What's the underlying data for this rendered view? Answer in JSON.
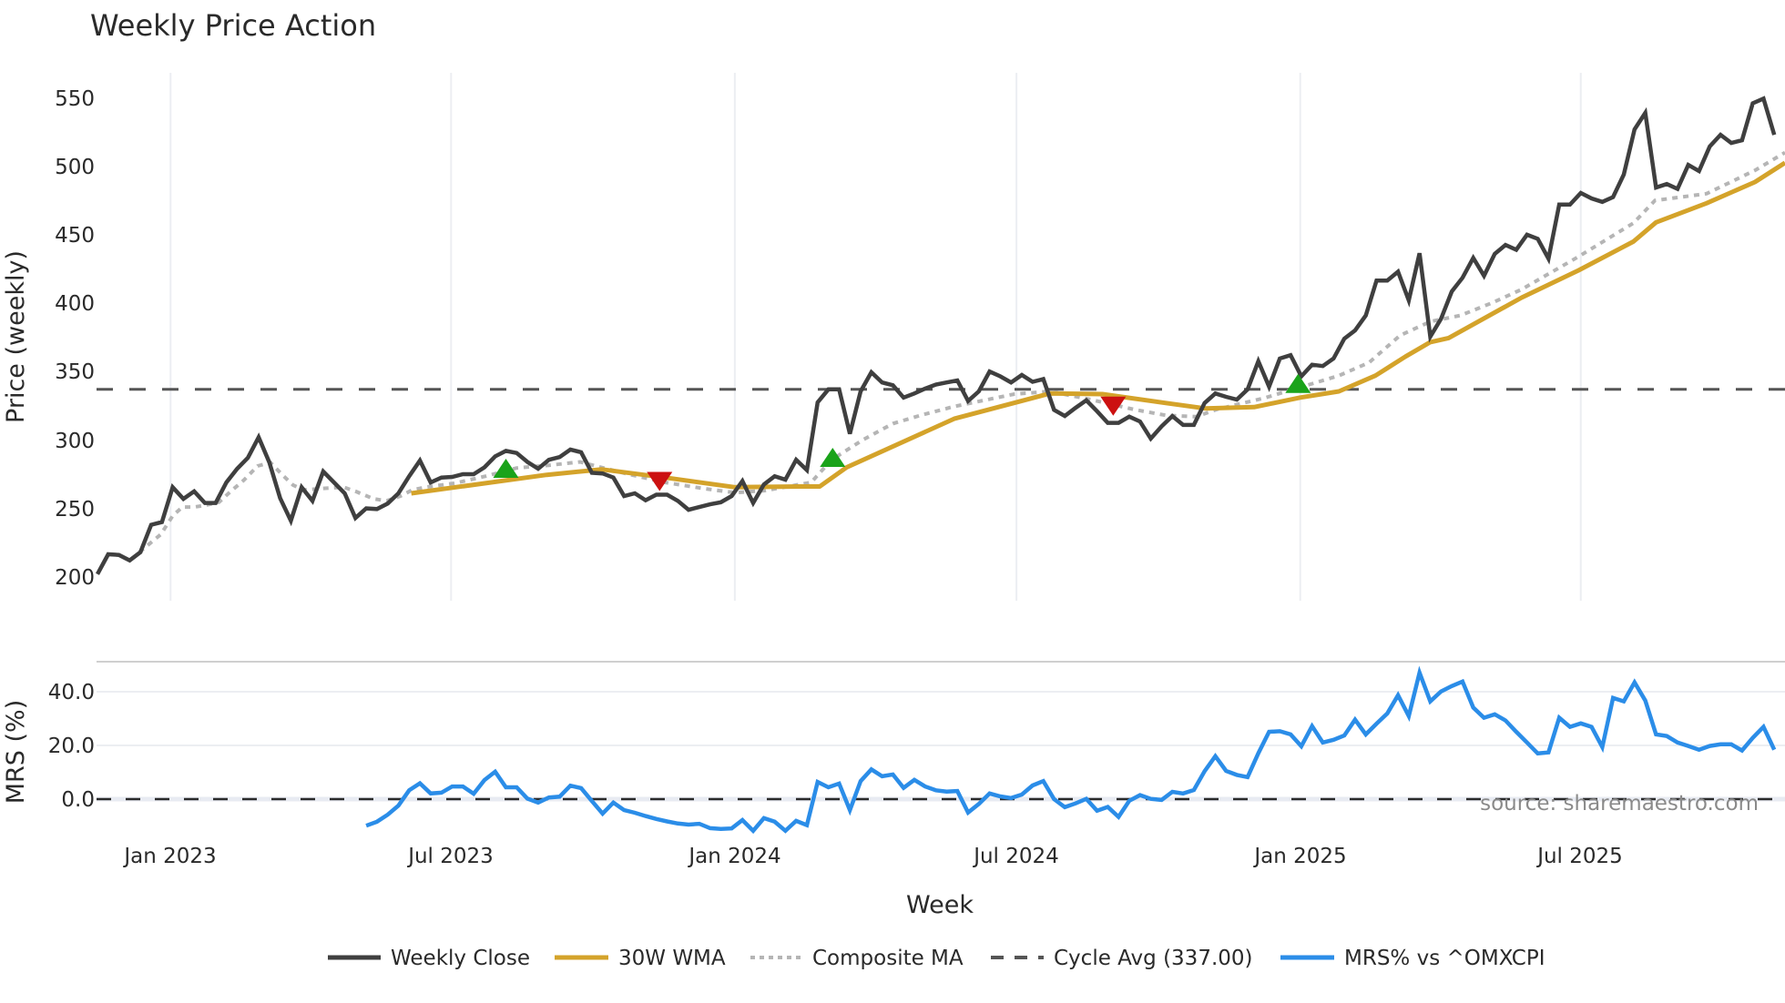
{
  "title": "Weekly Price Action",
  "source_label": "source: sharemaestro.com",
  "colors": {
    "close": "#3f3f3f",
    "wma": "#d4a32a",
    "composite": "#b5b5b5",
    "cycle": "#555555",
    "mrs": "#2b8de8",
    "buy": "#1aa31a",
    "sell": "#cc1111",
    "grid": "#eceef2"
  },
  "chart_data": [
    {
      "type": "line",
      "title": "Weekly Price Action",
      "xlabel": "Week",
      "ylabel": "Price (weekly)",
      "ylim": [
        195,
        560
      ],
      "yticks": [
        200,
        250,
        300,
        350,
        400,
        450,
        500,
        550
      ],
      "xticks": [
        {
          "label": "Jan 2023",
          "week": 6.8
        },
        {
          "label": "Jul 2023",
          "week": 32.9
        },
        {
          "label": "Jan 2024",
          "week": 59.3
        },
        {
          "label": "Jul 2024",
          "week": 85.5
        },
        {
          "label": "Jan 2025",
          "week": 111.9
        },
        {
          "label": "Jul 2025",
          "week": 138.0
        }
      ],
      "x_note": "week index 0 = mid-Nov 2022, 157 = last week shown",
      "grid": "vertical",
      "legend_position": "bottom",
      "series": [
        {
          "name": "Weekly Close",
          "start_week": 0,
          "values": [
            202,
            216.5,
            216,
            212,
            218,
            238,
            240,
            265.5,
            257,
            262.5,
            254,
            254,
            269,
            279,
            287,
            302,
            283.5,
            257.5,
            241,
            265.5,
            255.5,
            277,
            269,
            261,
            243,
            250,
            249.5,
            253.5,
            261,
            273.5,
            285,
            269,
            272.5,
            273,
            275,
            275,
            280,
            288,
            292,
            290.5,
            284,
            279,
            285.5,
            287.5,
            293,
            291,
            276,
            275.5,
            272.5,
            259,
            261,
            256,
            260,
            260,
            255.5,
            249,
            251,
            253,
            254.5,
            259,
            270,
            254,
            267.5,
            273.5,
            271,
            285.5,
            278,
            327.5,
            337,
            337,
            304.5,
            335.5,
            349.5,
            342,
            340,
            331,
            334,
            337.5,
            340.5,
            342,
            343.5,
            328.5,
            335.5,
            350,
            346.5,
            342,
            347.5,
            342.5,
            344.5,
            322,
            317.5,
            323.5,
            329,
            321,
            312.5,
            312.5,
            317,
            313.5,
            301,
            310,
            317.5,
            311,
            311,
            327,
            334,
            331.5,
            329.5,
            337,
            357.5,
            339,
            359.5,
            362,
            346.5,
            355,
            354,
            359.5,
            374,
            380,
            391,
            416.5,
            416.5,
            423,
            402,
            436.5,
            375.5,
            388.5,
            408.5,
            418.5,
            433,
            420,
            436,
            442.5,
            439,
            450,
            447,
            432.5,
            472,
            472,
            480.5,
            476.5,
            474,
            477.5,
            494,
            527,
            539,
            484.5,
            487,
            483.5,
            501,
            496.5,
            514.5,
            523,
            517,
            519,
            546,
            549.5,
            523
          ]
        },
        {
          "name": "30W WMA",
          "points": [
            [
              29.2,
              261
            ],
            [
              41.8,
              274.5
            ],
            [
              46.9,
              278.5
            ],
            [
              52.8,
              272.5
            ],
            [
              59.3,
              265.5
            ],
            [
              65.5,
              266
            ],
            [
              67.2,
              266
            ],
            [
              69.7,
              280
            ],
            [
              79.7,
              315.5
            ],
            [
              88.6,
              334
            ],
            [
              93.5,
              333.5
            ],
            [
              99.4,
              327
            ],
            [
              103.1,
              323
            ],
            [
              107.6,
              324
            ],
            [
              111.9,
              331
            ],
            [
              115.5,
              335.5
            ],
            [
              118.9,
              347
            ],
            [
              121.7,
              361
            ],
            [
              124,
              371.5
            ],
            [
              125.7,
              374.5
            ],
            [
              132.5,
              404
            ],
            [
              137.8,
              424
            ],
            [
              142.9,
              445
            ],
            [
              145,
              459
            ],
            [
              149.7,
              473
            ],
            [
              154.2,
              488.5
            ],
            [
              157,
              502.5
            ]
          ]
        },
        {
          "name": "Composite MA",
          "points": [
            [
              3.9,
              218
            ],
            [
              5.9,
              231
            ],
            [
              7,
              244.5
            ],
            [
              7.9,
              251
            ],
            [
              9,
              251
            ],
            [
              10.2,
              252.5
            ],
            [
              11.3,
              254.5
            ],
            [
              12.4,
              262.5
            ],
            [
              13.6,
              270.5
            ],
            [
              14.9,
              281
            ],
            [
              16.1,
              283.5
            ],
            [
              17.2,
              274.5
            ],
            [
              18.2,
              267
            ],
            [
              19.2,
              263.5
            ],
            [
              20.8,
              264.5
            ],
            [
              22.9,
              265.5
            ],
            [
              24,
              262.5
            ],
            [
              25.7,
              257
            ],
            [
              26.9,
              255.5
            ],
            [
              28.2,
              259
            ],
            [
              29.3,
              263.5
            ],
            [
              30.5,
              265.5
            ],
            [
              33.3,
              268.5
            ],
            [
              36.1,
              273.5
            ],
            [
              39,
              279.5
            ],
            [
              42,
              281.5
            ],
            [
              44.9,
              284
            ],
            [
              46.6,
              280.5
            ],
            [
              49.4,
              275
            ],
            [
              52.8,
              269
            ],
            [
              56.4,
              264.5
            ],
            [
              59.3,
              261.5
            ],
            [
              62.1,
              263
            ],
            [
              66.4,
              269
            ],
            [
              68.3,
              285.5
            ],
            [
              71.2,
              300
            ],
            [
              74,
              312
            ],
            [
              76.8,
              318.5
            ],
            [
              79.7,
              324.5
            ],
            [
              82.5,
              329
            ],
            [
              85.3,
              333.5
            ],
            [
              88.6,
              335.5
            ],
            [
              92.4,
              329.5
            ],
            [
              96.6,
              322
            ],
            [
              99.4,
              318
            ],
            [
              102.2,
              317
            ],
            [
              104.2,
              322.5
            ],
            [
              108.5,
              330.5
            ],
            [
              112.1,
              339
            ],
            [
              115.5,
              347
            ],
            [
              118.3,
              356.5
            ],
            [
              121.2,
              376.5
            ],
            [
              124,
              386.5
            ],
            [
              126.8,
              391
            ],
            [
              129.7,
              400
            ],
            [
              132.5,
              410
            ],
            [
              137.8,
              434
            ],
            [
              142.9,
              458.5
            ],
            [
              144.9,
              475
            ],
            [
              149.7,
              480
            ],
            [
              154.2,
              497
            ],
            [
              157,
              510
            ]
          ]
        },
        {
          "name": "Cycle Avg (337.00)",
          "constant": 337.0
        }
      ],
      "markers": [
        {
          "type": "buy",
          "shape": "triangle-up",
          "week": 38.0,
          "price": 279
        },
        {
          "type": "sell",
          "shape": "triangle-down",
          "week": 52.3,
          "price": 270
        },
        {
          "type": "buy",
          "shape": "triangle-up",
          "week": 68.4,
          "price": 287
        },
        {
          "type": "sell",
          "shape": "triangle-down",
          "week": 94.5,
          "price": 325
        },
        {
          "type": "buy",
          "shape": "triangle-up",
          "week": 111.7,
          "price": 341
        }
      ]
    },
    {
      "type": "line",
      "title": "",
      "xlabel": "Week",
      "ylabel": "MRS (%)",
      "ylim": [
        -14,
        52
      ],
      "yticks": [
        "0.0",
        "20.0",
        "40.0"
      ],
      "reference_line": 0.0,
      "series": [
        {
          "name": "MRS% vs ^OMXCPI",
          "start_week": 25,
          "values": [
            -10,
            -8.5,
            -5.9,
            -2.5,
            3.2,
            5.8,
            2,
            2.3,
            4.6,
            4.6,
            1.9,
            7,
            10.1,
            4.3,
            4.3,
            0.1,
            -1.4,
            0.5,
            0.8,
            4.9,
            4,
            -0.8,
            -5.5,
            -1.4,
            -4.2,
            -5.2,
            -6.4,
            -7.5,
            -8.4,
            -9.2,
            -9.6,
            -9.3,
            -10.9,
            -11.2,
            -11,
            -7.9,
            -11.9,
            -7.2,
            -8.5,
            -11.9,
            -8.2,
            -9.8,
            6.3,
            4.3,
            5.7,
            -4.2,
            6.6,
            11,
            8.4,
            9.1,
            4.1,
            7.1,
            4.6,
            3.2,
            2.7,
            2.9,
            -5.1,
            -1.9,
            2,
            0.9,
            0.3,
            1.6,
            5,
            6.6,
            -0.1,
            -3.1,
            -1.7,
            0,
            -4.4,
            -3,
            -6.7,
            -0.7,
            1.4,
            0,
            -0.4,
            2.6,
            2,
            3.3,
            10.3,
            15.9,
            10.4,
            8.9,
            8.1,
            17,
            25,
            25.2,
            24,
            19.6,
            27.1,
            21,
            22,
            23.6,
            29.5,
            24,
            28,
            31.8,
            38.6,
            30.8,
            47,
            36.3,
            40,
            42,
            43.7,
            34,
            30.2,
            31.5,
            29.2,
            25,
            21,
            16.9,
            17.3,
            30.2,
            26.8,
            28.1,
            26.8,
            19.3,
            37.6,
            36.3,
            43.4,
            36.6,
            24,
            23.4,
            21,
            19.7,
            18.3,
            19.7,
            20.3,
            20.3,
            18,
            22.7,
            26.8,
            18.3
          ]
        }
      ]
    }
  ],
  "axes": {
    "price_ylabel": "Price (weekly)",
    "mrs_ylabel": "MRS (%)",
    "xlabel": "Week",
    "price_ticks": [
      "200",
      "250",
      "300",
      "350",
      "400",
      "450",
      "500",
      "550"
    ],
    "mrs_ticks": [
      "0.0",
      "20.0",
      "40.0"
    ],
    "x_ticks": [
      "Jan 2023",
      "Jul 2023",
      "Jan 2024",
      "Jul 2024",
      "Jan 2025",
      "Jul 2025"
    ]
  },
  "legend": [
    {
      "label": "Weekly Close",
      "style": "solid-dark"
    },
    {
      "label": "30W WMA",
      "style": "solid-gold"
    },
    {
      "label": "Composite MA",
      "style": "dotted-gray"
    },
    {
      "label": "Cycle Avg (337.00)",
      "style": "dashed-dark"
    },
    {
      "label": "MRS% vs ^OMXCPI",
      "style": "solid-blue"
    }
  ]
}
